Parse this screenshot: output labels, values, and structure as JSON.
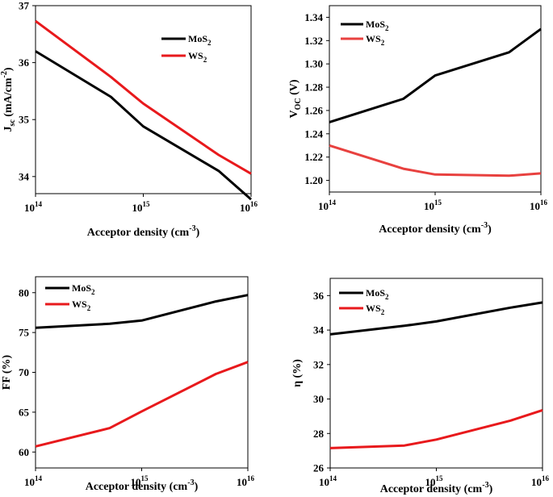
{
  "chart_data": [
    {
      "type": "line",
      "id": "jsc",
      "ylabel_main": "J",
      "ylabel_sub": "sc",
      "ylabel_rest": " (mA/cm",
      "ylabel_sup": "-2",
      "ylabel_end": ")",
      "xlabel_main": "Acceptor density (cm",
      "xlabel_sup": "-3",
      "xlabel_end": ")",
      "xlog": true,
      "xlim_exp": [
        14,
        16
      ],
      "x_ticks_exp": [
        14,
        15,
        16
      ],
      "x_tick_base": "10",
      "ylim": [
        33.7,
        37.0
      ],
      "y_ticks": [
        34,
        35,
        36,
        37
      ],
      "y_tick_labels": [
        "34",
        "35",
        "36",
        "37"
      ],
      "legend_position": "top-right",
      "series": [
        {
          "name": "MoS",
          "sub": "2",
          "color": "#000000",
          "x_exp": [
            14,
            14.699,
            15,
            15.699,
            16
          ],
          "values": [
            36.2,
            35.4,
            34.88,
            34.1,
            33.6
          ]
        },
        {
          "name": "WS",
          "sub": "2",
          "color": "#e8191c",
          "x_exp": [
            14,
            14.699,
            15,
            15.699,
            16
          ],
          "values": [
            36.73,
            35.75,
            35.28,
            34.38,
            34.05
          ]
        }
      ]
    },
    {
      "type": "line",
      "id": "voc",
      "ylabel_main": "V",
      "ylabel_sub": "OC",
      "ylabel_rest": " (V)",
      "ylabel_sup": "",
      "ylabel_end": "",
      "xlabel_main": "Acceptor density (cm",
      "xlabel_sup": "-3",
      "xlabel_end": ")",
      "xlog": true,
      "xlim_exp": [
        14,
        16
      ],
      "x_ticks_exp": [
        14,
        15,
        16
      ],
      "x_tick_base": "10",
      "ylim": [
        1.19,
        1.35
      ],
      "y_ticks": [
        1.2,
        1.22,
        1.24,
        1.26,
        1.28,
        1.3,
        1.32,
        1.34
      ],
      "y_tick_labels": [
        "1.20",
        "1.22",
        "1.24",
        "1.26",
        "1.28",
        "1.30",
        "1.32",
        "1.34"
      ],
      "legend_position": "top-left",
      "series": [
        {
          "name": "MoS",
          "sub": "2",
          "color": "#000000",
          "x_exp": [
            14,
            14.699,
            15,
            15.699,
            16
          ],
          "values": [
            1.25,
            1.27,
            1.29,
            1.31,
            1.33
          ]
        },
        {
          "name": "WS",
          "sub": "2",
          "color": "#e8413f",
          "x_exp": [
            14,
            14.699,
            15,
            15.699,
            16
          ],
          "values": [
            1.23,
            1.21,
            1.205,
            1.204,
            1.206
          ]
        }
      ]
    },
    {
      "type": "line",
      "id": "ff",
      "ylabel_main": "FF (%)",
      "ylabel_sub": "",
      "ylabel_rest": "",
      "ylabel_sup": "",
      "ylabel_end": "",
      "xlabel_main": "Acceptor density (cm",
      "xlabel_sup": "-3",
      "xlabel_end": ")",
      "xlog": true,
      "xlim_exp": [
        14,
        16
      ],
      "x_ticks_exp": [
        14,
        15,
        16
      ],
      "x_tick_base": "10",
      "ylim": [
        58,
        82
      ],
      "y_ticks": [
        60,
        65,
        70,
        75,
        80
      ],
      "y_tick_labels": [
        "60",
        "65",
        "70",
        "75",
        "80"
      ],
      "legend_position": "top-left",
      "series": [
        {
          "name": "MoS",
          "sub": "2",
          "color": "#000000",
          "x_exp": [
            14,
            14.699,
            15,
            15.699,
            16
          ],
          "values": [
            75.6,
            76.1,
            76.5,
            78.9,
            79.7
          ]
        },
        {
          "name": "WS",
          "sub": "2",
          "color": "#e8191c",
          "x_exp": [
            14,
            14.699,
            15,
            15.699,
            16
          ],
          "values": [
            60.7,
            63.0,
            65.1,
            69.8,
            71.3
          ]
        }
      ]
    },
    {
      "type": "line",
      "id": "eta",
      "ylabel_main": "η (%)",
      "ylabel_sub": "",
      "ylabel_rest": "",
      "ylabel_sup": "",
      "ylabel_end": "",
      "xlabel_main": "Acceptor density (cm",
      "xlabel_sup": "-3",
      "xlabel_end": ")",
      "xlog": true,
      "xlim_exp": [
        14,
        16
      ],
      "x_ticks_exp": [
        14,
        15,
        16
      ],
      "x_tick_base": "10",
      "ylim": [
        26,
        37
      ],
      "y_ticks": [
        26,
        28,
        30,
        32,
        34,
        36
      ],
      "y_tick_labels": [
        "26",
        "28",
        "30",
        "32",
        "34",
        "36"
      ],
      "legend_position": "top-left",
      "series": [
        {
          "name": "MoS",
          "sub": "2",
          "color": "#000000",
          "x_exp": [
            14,
            14.699,
            15,
            15.699,
            16
          ],
          "values": [
            33.75,
            34.25,
            34.5,
            35.3,
            35.6
          ]
        },
        {
          "name": "WS",
          "sub": "2",
          "color": "#e8191c",
          "x_exp": [
            14,
            14.699,
            15,
            15.699,
            16
          ],
          "values": [
            27.15,
            27.3,
            27.65,
            28.75,
            29.35
          ]
        }
      ]
    }
  ]
}
